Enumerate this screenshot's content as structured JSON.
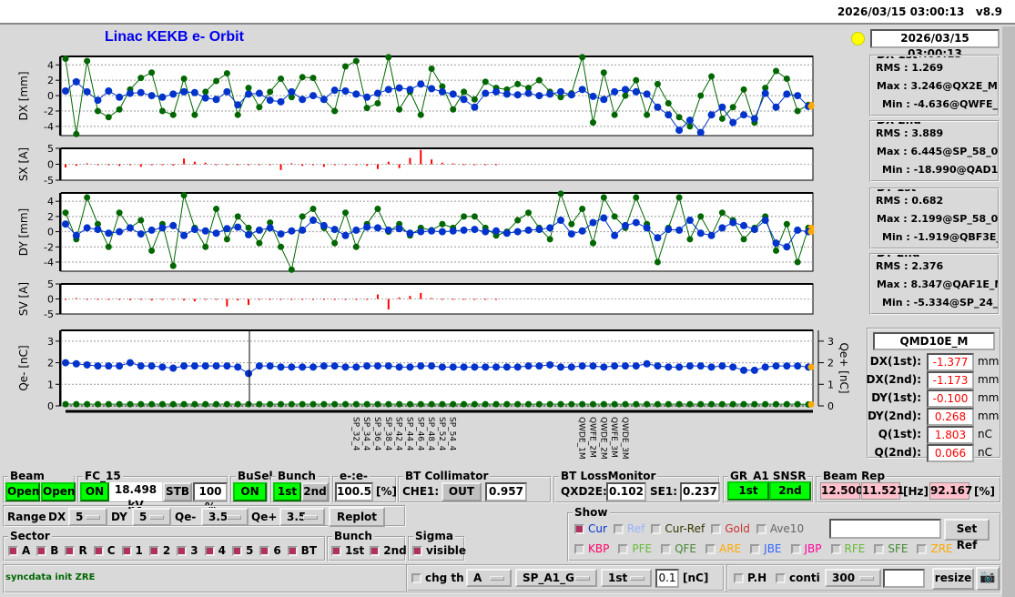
{
  "header": {
    "datetime": "2026/03/15 03:00:13",
    "version": "v8.9"
  },
  "title": "Linac KEKB e- Orbit",
  "status_time": "2026/03/15 03:00:13",
  "colors": {
    "first_bunch": "#0033cc",
    "second_bunch": "#006600",
    "steering": "#ff0000",
    "lamp": "#ffff00",
    "on": "#00ff00",
    "rep": "#ffc0cb"
  },
  "stats": [
    {
      "title": "DX 1st",
      "rms": "1.269",
      "max": "3.246@QX2E_M",
      "min": "-4.636@QWFE_1M"
    },
    {
      "title": "DX 2nd",
      "rms": "3.889",
      "max": "6.445@SP_58_0",
      "min": "-18.990@QAD10E_M"
    },
    {
      "title": "DY 1st",
      "rms": "0.682",
      "max": "2.199@SP_58_0",
      "min": "-1.919@QBF3E_S"
    },
    {
      "title": "DY 2nd",
      "rms": "2.376",
      "max": "8.347@QAF1E_M",
      "min": "-5.334@SP_24_3"
    }
  ],
  "stat_labels": {
    "rms": "RMS :",
    "max": "Max :",
    "min": "Min :"
  },
  "monitor": {
    "name": "QMD10E_M",
    "rows": [
      {
        "label": "DX(1st):",
        "value": "-1.377",
        "unit": "mm"
      },
      {
        "label": "DX(2nd):",
        "value": "-1.173",
        "unit": "mm"
      },
      {
        "label": "DY(1st):",
        "value": "-0.100",
        "unit": "mm"
      },
      {
        "label": "DY(2nd):",
        "value": "0.268",
        "unit": "mm"
      },
      {
        "label": "Q(1st):",
        "value": "1.803",
        "unit": "nC"
      },
      {
        "label": "Q(2nd):",
        "value": "0.066",
        "unit": "nC"
      }
    ]
  },
  "chart_data": [
    {
      "type": "line",
      "ylabel": "DX [mm]",
      "yticks": [
        "4",
        "2",
        "0",
        "-2",
        "-4"
      ],
      "ylim": [
        -5.2,
        5.1
      ],
      "grid": true,
      "series": [
        {
          "values": [
            0.6,
            1.8,
            0.5,
            -0.6,
            0.6,
            -0.2,
            0.3,
            0.4,
            0,
            -0.2,
            0.2,
            0.5,
            0.4,
            -0.3,
            -0.5,
            0.5,
            -1.2,
            0.2,
            0.3,
            -0.6,
            -0.8,
            0.5,
            -0.5,
            0,
            -0.5,
            0.7,
            0.6,
            0.2,
            -0.2,
            0.3,
            0.8,
            1,
            0.8,
            1.5,
            0.9,
            0.5,
            0.2,
            -0.5,
            -1.5,
            0.3,
            0.5,
            0.2,
            0.1,
            0.3,
            0,
            0.2,
            0.5,
            0.1,
            0.8,
            -0.1,
            -0.5,
            0.5,
            0.8,
            0.5,
            0.2,
            -1.5,
            -2.5,
            -4.5,
            -3.2,
            -4.8,
            -2.5,
            -1.5,
            -3.5,
            -2.5,
            -3,
            0.3,
            -1.5,
            0.2,
            0,
            -1.4
          ]
        },
        {
          "values": [
            4.8,
            -5,
            4.5,
            -2,
            -2.8,
            -1.8,
            0.8,
            2.3,
            3,
            -2,
            -2.5,
            2.2,
            -2.5,
            0.5,
            1.9,
            2.9,
            -2.5,
            1,
            -1.5,
            0.5,
            2.2,
            -0.2,
            2.4,
            2.3,
            -0.5,
            -2,
            3.8,
            4.5,
            -1.6,
            -1,
            5,
            -1.8,
            0.5,
            -2.5,
            3.5,
            1.2,
            -1.8,
            0.5,
            -0.5,
            1.8,
            1,
            0.8,
            1.5,
            1,
            2,
            0.5,
            -0.2,
            0.3,
            5,
            -3.5,
            3,
            -2.5,
            0,
            2,
            -2.5,
            1.5,
            -1,
            -2.8,
            -4,
            0,
            2.5,
            -3,
            -1.5,
            0.8,
            -3.5,
            1,
            3.2,
            2.2,
            -2,
            -1.2
          ]
        }
      ]
    },
    {
      "type": "bar",
      "ylabel": "SX [A]",
      "yticks": [
        "5",
        "0",
        "-5"
      ],
      "ylim": [
        -5,
        5
      ],
      "values": [
        -1,
        -0.5,
        0.3,
        -0.2,
        -0.3,
        -0.5,
        -0.2,
        -0.8,
        -0.3,
        -0.2,
        -0.4,
        1.8,
        0.8,
        0.5,
        0,
        -0.2,
        0,
        -0.3,
        -0.2,
        -0.1,
        -1.8,
        0.3,
        -0.5,
        -0.3,
        -0.8,
        -0.2,
        0,
        -0.3,
        -0.5,
        -1.5,
        0.8,
        -1.2,
        2,
        4.5,
        1.5,
        0.5,
        0.3,
        0,
        0,
        0,
        0,
        0,
        0,
        0,
        0,
        0,
        0,
        0,
        0,
        0,
        0,
        0,
        0,
        0,
        0,
        0,
        0,
        0,
        0,
        0,
        0,
        0,
        0,
        0,
        0,
        0,
        0,
        0,
        0,
        0
      ]
    },
    {
      "type": "line",
      "ylabel": "DY [mm]",
      "yticks": [
        "4",
        "2",
        "0",
        "-2",
        "-4"
      ],
      "ylim": [
        -5.2,
        5.1
      ],
      "grid": true,
      "series": [
        {
          "values": [
            1,
            -0.5,
            0.5,
            0.3,
            -0.2,
            0,
            0.5,
            -0.3,
            0.2,
            0.5,
            0.8,
            -0.5,
            0.3,
            0.1,
            -0.2,
            0.4,
            0.6,
            -0.4,
            0.2,
            0.5,
            -0.3,
            0.1,
            0.2,
            1.5,
            0.8,
            0.3,
            -0.5,
            0.2,
            0.6,
            0.5,
            0.2,
            0.4,
            -0.2,
            0,
            0.1,
            0,
            0.1,
            0.2,
            0.3,
            0,
            0.1,
            -0.2,
            0,
            0.2,
            0.3,
            0.5,
            1.5,
            -0.3,
            0.1,
            1.2,
            1.8,
            -0.5,
            0.8,
            1.2,
            0.5,
            -0.8,
            0.3,
            0.2,
            1.5,
            -0.2,
            -0.5,
            0.5,
            1.2,
            0.8,
            0.3,
            1.5,
            -1.5,
            -2,
            0.2,
            0
          ]
        },
        {
          "values": [
            2.5,
            -1,
            4.5,
            1,
            -2,
            2.5,
            0.5,
            1.5,
            -2.5,
            1,
            -4.5,
            4.8,
            0.5,
            -2,
            3,
            -1,
            2,
            0.5,
            -1.5,
            1.2,
            -2,
            -5,
            2,
            3,
            0.5,
            -1.5,
            2.5,
            -2,
            1,
            3,
            0,
            1,
            -0.5,
            0.5,
            0.2,
            1,
            0.5,
            2,
            2,
            0.5,
            -0.5,
            0,
            1.5,
            2.5,
            0.5,
            -1,
            5,
            1,
            3,
            -1.5,
            4.5,
            2,
            0.5,
            4.5,
            1,
            -4,
            0.5,
            4.5,
            -1,
            2,
            -0.5,
            2.5,
            1.5,
            -1,
            0.5,
            2,
            -2.5,
            1,
            -4,
            0.5
          ]
        }
      ]
    },
    {
      "type": "bar",
      "ylabel": "SV [A]",
      "yticks": [
        "5",
        "0",
        "-5"
      ],
      "ylim": [
        -5,
        5
      ],
      "values": [
        0,
        0.3,
        -0.2,
        0,
        -0.3,
        0,
        -0.4,
        0,
        -0.5,
        -0.3,
        0,
        -0.5,
        -0.8,
        0,
        -0.2,
        -2.5,
        -0.5,
        -2,
        0,
        -0.3,
        0,
        -0.2,
        0,
        -0.2,
        0,
        0,
        -0.3,
        0,
        -0.2,
        1.5,
        -3.5,
        0.5,
        1,
        2,
        0.3,
        0,
        0,
        0,
        0,
        0,
        0,
        0,
        0,
        0,
        0,
        0,
        0,
        0,
        0,
        0,
        0,
        0,
        0,
        0,
        0,
        0,
        0,
        0,
        0,
        0,
        0,
        0,
        0,
        0,
        0,
        0,
        0,
        0,
        0,
        0
      ]
    },
    {
      "type": "line",
      "ylabel": "Qe- [nC]",
      "y2label": "Qe+ [nC]",
      "yticks": [
        "3",
        "2",
        "1",
        "0"
      ],
      "ylim": [
        0,
        3.5
      ],
      "grid": true,
      "series": [
        {
          "values": [
            2,
            1.95,
            1.9,
            1.85,
            1.85,
            1.85,
            2,
            1.85,
            1.85,
            1.8,
            1.75,
            1.85,
            1.85,
            1.85,
            1.85,
            1.85,
            1.8,
            1.5,
            1.85,
            1.85,
            1.8,
            1.8,
            1.8,
            1.8,
            1.85,
            1.85,
            1.8,
            1.8,
            1.85,
            1.85,
            1.85,
            1.8,
            1.8,
            1.85,
            1.85,
            1.8,
            1.8,
            1.8,
            1.8,
            1.8,
            1.8,
            1.8,
            1.8,
            1.85,
            1.85,
            1.9,
            1.8,
            1.8,
            1.85,
            1.85,
            1.8,
            1.85,
            1.85,
            1.85,
            1.95,
            1.85,
            1.8,
            1.8,
            1.85,
            1.85,
            1.8,
            1.85,
            1.8,
            1.65,
            1.65,
            1.8,
            1.85,
            1.85,
            1.85,
            1.8
          ]
        },
        {
          "values": [
            0.08,
            0.08,
            0.08,
            0.08,
            0.08,
            0.08,
            0.08,
            0.08,
            0.08,
            0.08,
            0.08,
            0.08,
            0.08,
            0.08,
            0.08,
            0.08,
            0.08,
            0.08,
            0.08,
            0.08,
            0.08,
            0.08,
            0.08,
            0.08,
            0.08,
            0.08,
            0.08,
            0.08,
            0.08,
            0.08,
            0.08,
            0.08,
            0.08,
            0.08,
            0.08,
            0.08,
            0.08,
            0.08,
            0.08,
            0.08,
            0.08,
            0.08,
            0.08,
            0.08,
            0.08,
            0.08,
            0.08,
            0.08,
            0.08,
            0.08,
            0.08,
            0.08,
            0.08,
            0.08,
            0.08,
            0.08,
            0.08,
            0.08,
            0.08,
            0.08,
            0.08,
            0.08,
            0.08,
            0.08,
            0.08,
            0.08,
            0.08,
            0.08,
            0.08,
            0.07
          ]
        }
      ]
    }
  ],
  "x_tick_labels": [
    {
      "i": 27,
      "t": "SP_32_4"
    },
    {
      "i": 28,
      "t": "SP_34_4"
    },
    {
      "i": 29,
      "t": "SP_36_4"
    },
    {
      "i": 30,
      "t": "SP_38_4"
    },
    {
      "i": 31,
      "t": "SP_42_4"
    },
    {
      "i": 32,
      "t": "SP_44_4"
    },
    {
      "i": 33,
      "t": "SP_46_4"
    },
    {
      "i": 34,
      "t": "SP_48_4"
    },
    {
      "i": 35,
      "t": "SP_52_4"
    },
    {
      "i": 36,
      "t": "SP_54_4"
    },
    {
      "i": 48,
      "t": "QWDE_1M"
    },
    {
      "i": 49,
      "t": "QWFE_2M"
    },
    {
      "i": 50,
      "t": "QWDE_2M"
    },
    {
      "i": 51,
      "t": "QWFE_3M"
    },
    {
      "i": 52,
      "t": "QWDE_3M"
    }
  ],
  "controls": {
    "beam_gate": {
      "label": "Beam Gate",
      "a": "Open",
      "b": "Open"
    },
    "fc15": {
      "label": "FC_15",
      "on": "ON",
      "kv": "18.498 kV",
      "stb": "STB",
      "pct": "100 %"
    },
    "busel": {
      "label": "BuSel",
      "on": "ON"
    },
    "bunch": {
      "label": "Bunch",
      "first": "1st",
      "second": "2nd"
    },
    "ee": {
      "label": "e-:e-",
      "value": "100.5",
      "unit": "[%]"
    },
    "bt_coll": {
      "label": "BT Collimator",
      "name": "CHE1:",
      "state": "OUT",
      "value": "0.957"
    },
    "bt_loss": {
      "label": "BT LossMonitor",
      "n1": "QXD2E:",
      "v1": "0.102",
      "n2": "SE1:",
      "v2": "0.237"
    },
    "gr": {
      "label": "GR_A1  SNSR",
      "first": "1st",
      "second": "2nd"
    },
    "rep": {
      "label": "Beam Rep",
      "v1": "12.500",
      "v2": "11.521",
      "hz": "[Hz]",
      "v3": "92.167",
      "pct": "[%]"
    },
    "range": {
      "label": "Range",
      "dx": "DX",
      "dxv": "5",
      "dy": "DY",
      "dyv": "5",
      "qm": "Qe-",
      "qmv": "3.5",
      "qp": "Qe+",
      "qpv": "3.5",
      "replot": "Replot"
    },
    "sector": {
      "label": "Sector",
      "items": [
        "A",
        "B",
        "R",
        "C",
        "1",
        "2",
        "3",
        "4",
        "5",
        "6",
        "BT"
      ]
    },
    "bunch2": {
      "label": "Bunch",
      "items": [
        "1st",
        "2nd"
      ]
    },
    "sigma": {
      "label": "Sigma",
      "item": "visible"
    },
    "show": {
      "label": "Show",
      "row1": [
        {
          "t": "Cur",
          "c": "#0033cc",
          "on": true
        },
        {
          "t": "Ref",
          "c": "#99b3ff"
        },
        {
          "t": "Cur-Ref",
          "c": "#333300"
        },
        {
          "t": "Gold",
          "c": "#cc3333"
        },
        {
          "t": "Ave10",
          "c": "#666666"
        }
      ],
      "row2": [
        {
          "t": "KBP",
          "c": "#ff0066"
        },
        {
          "t": "PFE",
          "c": "#66bb33"
        },
        {
          "t": "QFE",
          "c": "#448833"
        },
        {
          "t": "ARE",
          "c": "#ffaa00"
        },
        {
          "t": "JBE",
          "c": "#3366ff"
        },
        {
          "t": "JBP",
          "c": "#ff0099"
        },
        {
          "t": "RFE",
          "c": "#66bb33"
        },
        {
          "t": "SFE",
          "c": "#448833"
        },
        {
          "t": "ZRE",
          "c": "#ffaa00"
        }
      ],
      "set_ref": "Set Ref"
    },
    "status_msg": "syncdata init ZRE",
    "chg_th": "chg th",
    "chg_sel": "A",
    "mon_sel": "SP_A1_G",
    "bunch_sel": "1st",
    "thresh": "0.1",
    "thresh_unit": "[nC]",
    "ph": "P.H",
    "conti": "conti",
    "count": "300",
    "resize": "resize"
  }
}
